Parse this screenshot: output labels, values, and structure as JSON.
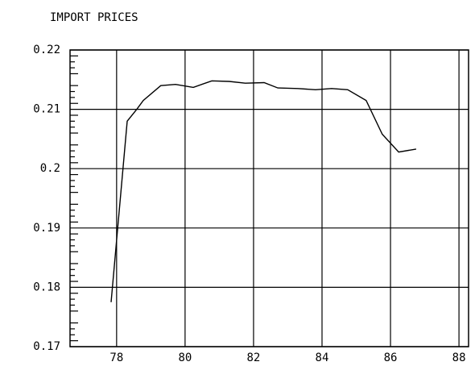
{
  "chart_data": {
    "type": "line",
    "title": "IMPORT PRICES",
    "x": [
      77.84,
      78.31,
      78.59,
      78.78,
      79.29,
      79.72,
      80.24,
      80.78,
      81.29,
      81.76,
      82.31,
      82.71,
      83.29,
      83.81,
      84.28,
      84.75,
      85.29,
      85.76,
      86.24,
      86.75
    ],
    "series": [
      {
        "name": "IMPORT PRICES",
        "color": "#000000",
        "values": [
          0.1775,
          0.208,
          0.21,
          0.2115,
          0.214,
          0.2142,
          0.2137,
          0.2148,
          0.2147,
          0.2144,
          0.2145,
          0.2136,
          0.2135,
          0.2133,
          0.2135,
          0.2133,
          0.2115,
          0.2058,
          0.2028,
          0.2033
        ]
      }
    ],
    "xlim": [
      76.64,
      88.28
    ],
    "xticks": [
      78,
      80,
      82,
      84,
      86,
      88
    ],
    "ylim": [
      0.17,
      0.22
    ],
    "yticks": [
      0.17,
      0.18,
      0.19,
      0.2,
      0.21,
      0.22
    ],
    "grid": true
  }
}
